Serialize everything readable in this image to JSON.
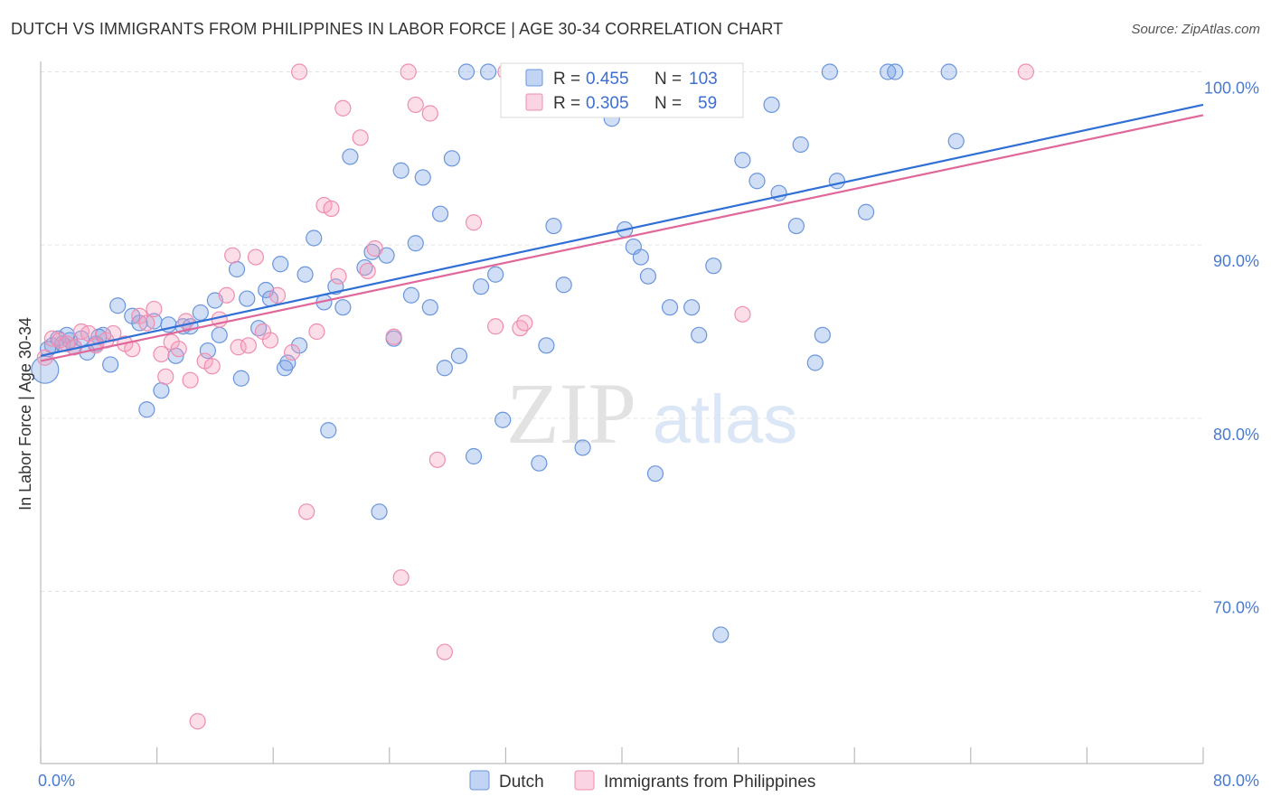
{
  "title": "DUTCH VS IMMIGRANTS FROM PHILIPPINES IN LABOR FORCE | AGE 30-34 CORRELATION CHART",
  "source": "Source: ZipAtlas.com",
  "watermark": {
    "zip": "ZIP",
    "atlas": "atlas"
  },
  "colors": {
    "dutch_fill": "rgba(120,160,230,0.35)",
    "dutch_stroke": "#6a95dc",
    "dutch_line": "#2f6fd6",
    "phil_fill": "rgba(245,160,190,0.35)",
    "phil_stroke": "#ef8db0",
    "phil_line": "#e0679a",
    "axis_label": "#4a7bd0",
    "grid": "#e3e3e3"
  },
  "legend_top": {
    "rows": [
      {
        "r_label": "R = ",
        "r_value": "0.455",
        "n_label": "N = ",
        "n_value": "103"
      },
      {
        "r_label": "R = ",
        "r_value": "0.305",
        "n_label": "N = ",
        "n_value": "59"
      }
    ]
  },
  "chart_data": {
    "type": "scatter",
    "title": "DUTCH VS IMMIGRANTS FROM PHILIPPINES IN LABOR FORCE | AGE 30-34 CORRELATION CHART",
    "xlabel": "",
    "ylabel": "In Labor Force | Age 30-34",
    "xlim": [
      0,
      80
    ],
    "ylim": [
      61.5,
      101.5
    ],
    "x_tick_labels": [
      {
        "value": 0,
        "label": "0.0%"
      },
      {
        "value": 80,
        "label": "80.0%"
      }
    ],
    "y_tick_labels": [
      {
        "value": 100,
        "label": "100.0%"
      },
      {
        "value": 90,
        "label": "90.0%"
      },
      {
        "value": 80,
        "label": "80.0%"
      },
      {
        "value": 70,
        "label": "70.0%"
      }
    ],
    "legend_placement": "top-center",
    "grid": true,
    "series": [
      {
        "name": "Dutch",
        "R": 0.455,
        "N": 103,
        "trend": {
          "x": [
            0,
            80
          ],
          "y": [
            83.6,
            98.1
          ]
        },
        "points": [
          [
            0.3,
            82.8
          ],
          [
            0.8,
            84.2
          ],
          [
            1.2,
            84.6
          ],
          [
            1.5,
            84.3
          ],
          [
            2.0,
            84.5
          ],
          [
            2.3,
            84.1
          ],
          [
            3.2,
            83.8
          ],
          [
            3.8,
            84.3
          ],
          [
            4.3,
            84.8
          ],
          [
            4.8,
            83.1
          ],
          [
            5.3,
            86.5
          ],
          [
            6.3,
            85.9
          ],
          [
            6.8,
            85.5
          ],
          [
            7.3,
            80.5
          ],
          [
            7.8,
            85.6
          ],
          [
            8.3,
            81.6
          ],
          [
            8.8,
            85.4
          ],
          [
            9.3,
            83.6
          ],
          [
            9.8,
            85.3
          ],
          [
            10.3,
            85.3
          ],
          [
            11.0,
            86.1
          ],
          [
            11.5,
            83.9
          ],
          [
            12.0,
            86.8
          ],
          [
            12.3,
            84.8
          ],
          [
            13.5,
            88.6
          ],
          [
            13.8,
            82.3
          ],
          [
            14.2,
            86.9
          ],
          [
            15.0,
            85.2
          ],
          [
            15.5,
            87.4
          ],
          [
            15.8,
            86.9
          ],
          [
            16.5,
            88.9
          ],
          [
            16.8,
            82.9
          ],
          [
            17.0,
            83.2
          ],
          [
            17.8,
            84.2
          ],
          [
            18.2,
            88.3
          ],
          [
            18.8,
            90.4
          ],
          [
            19.5,
            86.7
          ],
          [
            19.8,
            79.3
          ],
          [
            20.3,
            87.6
          ],
          [
            20.8,
            86.4
          ],
          [
            21.3,
            95.1
          ],
          [
            22.3,
            88.7
          ],
          [
            22.8,
            89.6
          ],
          [
            23.3,
            74.6
          ],
          [
            23.8,
            89.4
          ],
          [
            24.3,
            84.6
          ],
          [
            24.8,
            94.3
          ],
          [
            25.5,
            87.1
          ],
          [
            25.8,
            90.1
          ],
          [
            26.3,
            93.9
          ],
          [
            26.8,
            86.4
          ],
          [
            27.5,
            91.8
          ],
          [
            27.8,
            82.9
          ],
          [
            28.3,
            95.0
          ],
          [
            28.8,
            83.6
          ],
          [
            29.3,
            100.0
          ],
          [
            29.8,
            77.8
          ],
          [
            30.3,
            87.6
          ],
          [
            30.8,
            100.0
          ],
          [
            31.3,
            88.3
          ],
          [
            31.8,
            79.9
          ],
          [
            33.3,
            100.0
          ],
          [
            33.8,
            100.0
          ],
          [
            34.3,
            77.4
          ],
          [
            34.8,
            84.2
          ],
          [
            35.3,
            91.1
          ],
          [
            36.0,
            87.7
          ],
          [
            37.3,
            78.3
          ],
          [
            38.2,
            100.0
          ],
          [
            39.0,
            100.0
          ],
          [
            39.3,
            97.3
          ],
          [
            40.2,
            90.9
          ],
          [
            40.8,
            89.9
          ],
          [
            41.3,
            89.3
          ],
          [
            41.8,
            88.2
          ],
          [
            42.3,
            76.8
          ],
          [
            43.3,
            86.4
          ],
          [
            44.3,
            100.0
          ],
          [
            44.8,
            86.4
          ],
          [
            45.3,
            84.8
          ],
          [
            46.3,
            88.8
          ],
          [
            46.8,
            67.5
          ],
          [
            47.2,
            100.0
          ],
          [
            48.3,
            94.9
          ],
          [
            49.3,
            93.7
          ],
          [
            50.3,
            98.1
          ],
          [
            50.8,
            93.0
          ],
          [
            52.0,
            91.1
          ],
          [
            52.3,
            95.8
          ],
          [
            53.3,
            83.2
          ],
          [
            53.8,
            84.8
          ],
          [
            54.3,
            100.0
          ],
          [
            54.8,
            93.7
          ],
          [
            56.8,
            91.9
          ],
          [
            58.3,
            100.0
          ],
          [
            58.8,
            100.0
          ],
          [
            62.5,
            100.0
          ],
          [
            63.0,
            96.0
          ],
          [
            0.5,
            84.0
          ],
          [
            1.8,
            84.8
          ],
          [
            2.8,
            84.6
          ],
          [
            4.0,
            84.7
          ],
          [
            36.3,
            100.0
          ]
        ]
      },
      {
        "name": "Immigrants from Philippines",
        "R": 0.305,
        "N": 59,
        "trend": {
          "x": [
            0,
            80
          ],
          "y": [
            83.3,
            97.5
          ]
        },
        "points": [
          [
            0.3,
            83.5
          ],
          [
            0.8,
            84.6
          ],
          [
            1.3,
            84.5
          ],
          [
            1.8,
            84.3
          ],
          [
            2.3,
            84.1
          ],
          [
            2.8,
            85.0
          ],
          [
            3.3,
            84.9
          ],
          [
            3.8,
            84.2
          ],
          [
            4.5,
            84.5
          ],
          [
            5.0,
            84.9
          ],
          [
            5.8,
            84.3
          ],
          [
            6.3,
            84.0
          ],
          [
            6.8,
            85.9
          ],
          [
            7.3,
            85.5
          ],
          [
            7.8,
            86.3
          ],
          [
            8.3,
            83.7
          ],
          [
            8.6,
            82.4
          ],
          [
            9.0,
            84.4
          ],
          [
            9.5,
            84.0
          ],
          [
            10.0,
            85.6
          ],
          [
            10.3,
            82.2
          ],
          [
            10.8,
            62.5
          ],
          [
            11.3,
            83.3
          ],
          [
            11.8,
            83.0
          ],
          [
            12.3,
            85.7
          ],
          [
            12.8,
            87.1
          ],
          [
            13.2,
            89.4
          ],
          [
            13.6,
            84.1
          ],
          [
            14.3,
            84.2
          ],
          [
            14.8,
            89.3
          ],
          [
            15.3,
            85.0
          ],
          [
            15.8,
            84.5
          ],
          [
            16.3,
            87.1
          ],
          [
            17.3,
            83.8
          ],
          [
            17.8,
            100.0
          ],
          [
            18.3,
            74.6
          ],
          [
            19.0,
            85.0
          ],
          [
            19.5,
            92.3
          ],
          [
            20.0,
            92.1
          ],
          [
            20.5,
            88.2
          ],
          [
            20.8,
            97.9
          ],
          [
            22.0,
            96.2
          ],
          [
            22.5,
            88.5
          ],
          [
            23.0,
            89.8
          ],
          [
            24.3,
            84.7
          ],
          [
            24.8,
            70.8
          ],
          [
            25.3,
            100.0
          ],
          [
            25.8,
            98.1
          ],
          [
            26.8,
            97.6
          ],
          [
            27.3,
            77.6
          ],
          [
            27.8,
            66.5
          ],
          [
            29.8,
            91.3
          ],
          [
            31.3,
            85.3
          ],
          [
            32.0,
            100.0
          ],
          [
            33.0,
            85.2
          ],
          [
            33.3,
            85.5
          ],
          [
            35.8,
            100.0
          ],
          [
            48.3,
            86.0
          ],
          [
            67.8,
            100.0
          ]
        ]
      }
    ]
  }
}
